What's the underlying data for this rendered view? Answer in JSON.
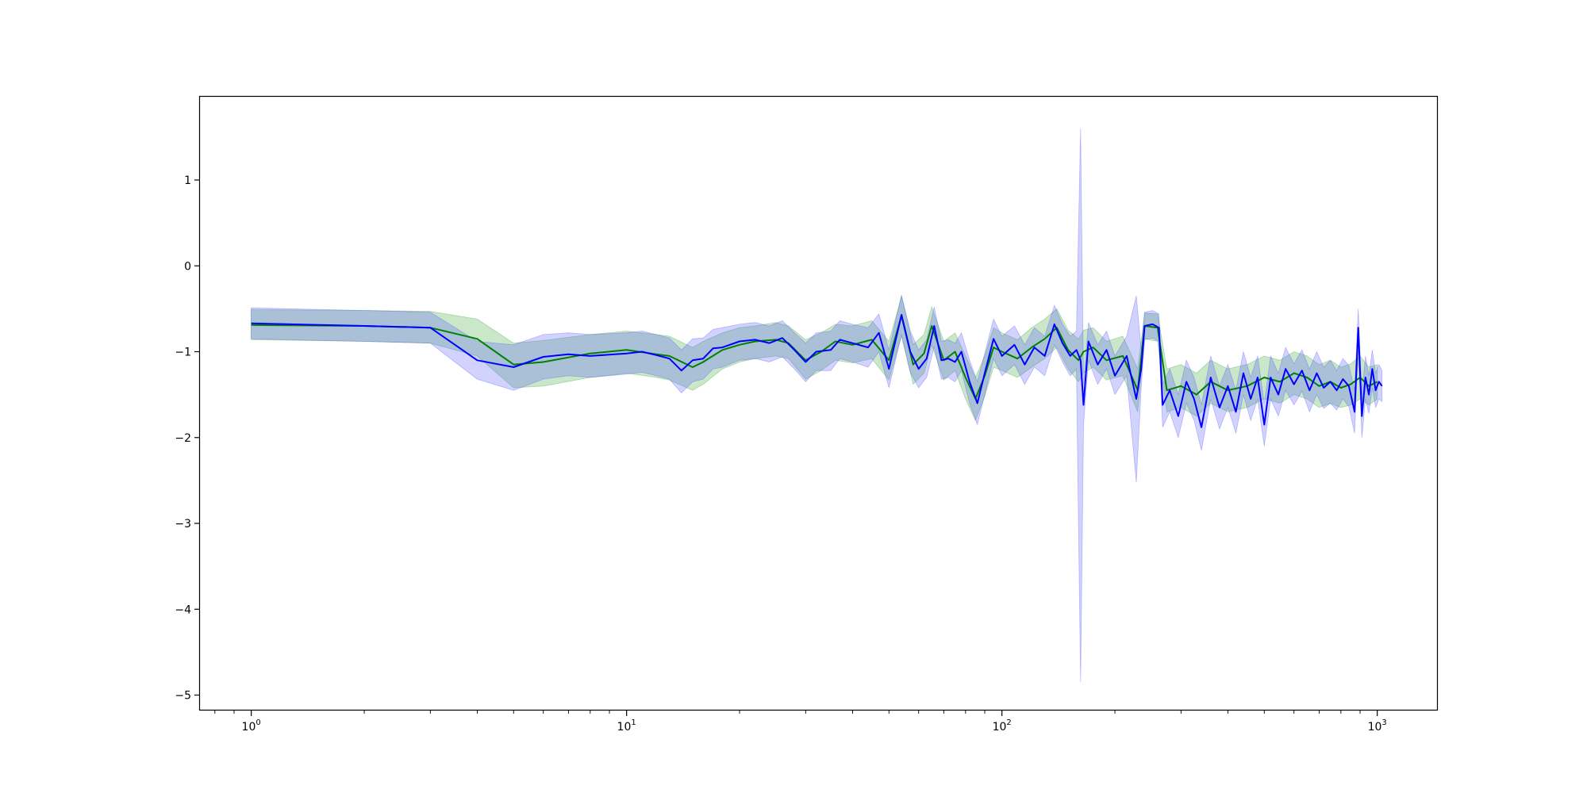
{
  "chart_data": {
    "type": "line",
    "title": "",
    "xlabel": "",
    "ylabel": "",
    "x_scale": "log",
    "xlim": [
      0.73,
      1450
    ],
    "ylim": [
      -5.18,
      1.97
    ],
    "grid": false,
    "legend": "none",
    "x_ticks": [
      {
        "value": 1,
        "base": "10",
        "exp": "0"
      },
      {
        "value": 10,
        "base": "10",
        "exp": "1"
      },
      {
        "value": 100,
        "base": "10",
        "exp": "2"
      },
      {
        "value": 1000,
        "base": "10",
        "exp": "3"
      }
    ],
    "y_ticks": [
      {
        "value": 1,
        "label": "1"
      },
      {
        "value": 0,
        "label": "0"
      },
      {
        "value": -1,
        "label": "−1"
      },
      {
        "value": -2,
        "label": "−2"
      },
      {
        "value": -3,
        "label": "−3"
      },
      {
        "value": -4,
        "label": "−4"
      },
      {
        "value": -5,
        "label": "−5"
      }
    ],
    "series": [
      {
        "color": "#008000",
        "band_color": "#2ca02c",
        "band_opacity": 0.25,
        "points": [
          [
            1,
            -0.69,
            -0.86,
            -0.51
          ],
          [
            2,
            -0.7,
            -0.88,
            -0.52
          ],
          [
            3,
            -0.72,
            -0.9,
            -0.53
          ],
          [
            4,
            -0.85,
            -1.05,
            -0.62
          ],
          [
            5,
            -1.15,
            -1.42,
            -0.9
          ],
          [
            6,
            -1.12,
            -1.4,
            -0.87
          ],
          [
            8,
            -1.02,
            -1.3,
            -0.8
          ],
          [
            10,
            -0.98,
            -1.25,
            -0.76
          ],
          [
            12,
            -1.03,
            -1.3,
            -0.8
          ],
          [
            13,
            -1.05,
            -1.33,
            -0.82
          ],
          [
            15,
            -1.18,
            -1.45,
            -0.95
          ],
          [
            16,
            -1.12,
            -1.38,
            -0.88
          ],
          [
            18,
            -0.98,
            -1.2,
            -0.78
          ],
          [
            20,
            -0.92,
            -1.12,
            -0.72
          ],
          [
            22,
            -0.88,
            -1.08,
            -0.7
          ],
          [
            25,
            -0.86,
            -1.05,
            -0.66
          ],
          [
            27,
            -0.9,
            -1.08,
            -0.7
          ],
          [
            30,
            -1.1,
            -1.32,
            -0.86
          ],
          [
            33,
            -1.0,
            -1.22,
            -0.78
          ],
          [
            36,
            -0.88,
            -1.1,
            -0.68
          ],
          [
            40,
            -0.92,
            -1.13,
            -0.7
          ],
          [
            45,
            -0.86,
            -1.08,
            -0.64
          ],
          [
            50,
            -1.1,
            -1.33,
            -0.88
          ],
          [
            54,
            -0.58,
            -0.82,
            -0.36
          ],
          [
            58,
            -1.15,
            -1.38,
            -0.92
          ],
          [
            62,
            -1.02,
            -1.25,
            -0.8
          ],
          [
            65,
            -0.7,
            -0.92,
            -0.48
          ],
          [
            70,
            -1.1,
            -1.33,
            -0.88
          ],
          [
            75,
            -1.0,
            -1.22,
            -0.78
          ],
          [
            80,
            -1.3,
            -1.55,
            -1.05
          ],
          [
            85,
            -1.55,
            -1.8,
            -1.3
          ],
          [
            90,
            -1.28,
            -1.52,
            -1.05
          ],
          [
            95,
            -0.95,
            -1.18,
            -0.72
          ],
          [
            100,
            -1.0,
            -1.22,
            -0.78
          ],
          [
            110,
            -1.08,
            -1.3,
            -0.86
          ],
          [
            120,
            -0.95,
            -1.18,
            -0.72
          ],
          [
            130,
            -0.85,
            -1.08,
            -0.62
          ],
          [
            140,
            -0.72,
            -0.95,
            -0.5
          ],
          [
            150,
            -0.98,
            -1.2,
            -0.75
          ],
          [
            160,
            -1.1,
            -1.35,
            -0.85
          ],
          [
            165,
            -1.0,
            -1.25,
            -0.75
          ],
          [
            175,
            -0.95,
            -1.18,
            -0.72
          ],
          [
            190,
            -1.1,
            -1.33,
            -0.88
          ],
          [
            210,
            -1.05,
            -1.28,
            -0.82
          ],
          [
            230,
            -1.45,
            -1.7,
            -1.2
          ],
          [
            240,
            -0.7,
            -0.85,
            -0.55
          ],
          [
            260,
            -0.72,
            -0.88,
            -0.56
          ],
          [
            275,
            -1.45,
            -1.7,
            -1.2
          ],
          [
            300,
            -1.4,
            -1.65,
            -1.15
          ],
          [
            330,
            -1.5,
            -1.75,
            -1.25
          ],
          [
            360,
            -1.35,
            -1.6,
            -1.1
          ],
          [
            400,
            -1.45,
            -1.7,
            -1.2
          ],
          [
            450,
            -1.4,
            -1.65,
            -1.15
          ],
          [
            500,
            -1.3,
            -1.55,
            -1.05
          ],
          [
            550,
            -1.35,
            -1.6,
            -1.1
          ],
          [
            600,
            -1.25,
            -1.5,
            -1.0
          ],
          [
            650,
            -1.3,
            -1.55,
            -1.05
          ],
          [
            700,
            -1.4,
            -1.65,
            -1.15
          ],
          [
            750,
            -1.35,
            -1.6,
            -1.1
          ],
          [
            800,
            -1.42,
            -1.65,
            -1.18
          ],
          [
            850,
            -1.38,
            -1.62,
            -1.14
          ],
          [
            900,
            -1.3,
            -1.55,
            -1.05
          ],
          [
            950,
            -1.4,
            -1.62,
            -1.18
          ],
          [
            1000,
            -1.35,
            -1.55,
            -1.15
          ]
        ]
      },
      {
        "color": "#0000ff",
        "band_color": "#4c4cff",
        "band_opacity": 0.25,
        "points": [
          [
            1,
            -0.67,
            -0.85,
            -0.49
          ],
          [
            2,
            -0.7,
            -0.88,
            -0.52
          ],
          [
            3,
            -0.72,
            -0.9,
            -0.54
          ],
          [
            4,
            -1.1,
            -1.32,
            -0.88
          ],
          [
            5,
            -1.18,
            -1.45,
            -0.92
          ],
          [
            6,
            -1.06,
            -1.32,
            -0.8
          ],
          [
            7,
            -1.03,
            -1.28,
            -0.78
          ],
          [
            8,
            -1.05,
            -1.3,
            -0.8
          ],
          [
            10,
            -1.02,
            -1.26,
            -0.78
          ],
          [
            11,
            -1.0,
            -1.24,
            -0.76
          ],
          [
            12,
            -1.04,
            -1.28,
            -0.8
          ],
          [
            13,
            -1.08,
            -1.32,
            -0.84
          ],
          [
            14,
            -1.22,
            -1.48,
            -0.98
          ],
          [
            15,
            -1.1,
            -1.35,
            -0.85
          ],
          [
            16,
            -1.08,
            -1.32,
            -0.84
          ],
          [
            17,
            -0.96,
            -1.2,
            -0.74
          ],
          [
            18,
            -0.95,
            -1.18,
            -0.72
          ],
          [
            20,
            -0.88,
            -1.1,
            -0.68
          ],
          [
            22,
            -0.86,
            -1.08,
            -0.66
          ],
          [
            24,
            -0.9,
            -1.12,
            -0.7
          ],
          [
            26,
            -0.84,
            -1.06,
            -0.64
          ],
          [
            28,
            -0.98,
            -1.2,
            -0.78
          ],
          [
            30,
            -1.12,
            -1.35,
            -0.9
          ],
          [
            32,
            -1.0,
            -1.22,
            -0.78
          ],
          [
            35,
            -0.98,
            -1.22,
            -0.76
          ],
          [
            37,
            -0.86,
            -1.08,
            -0.64
          ],
          [
            40,
            -0.9,
            -1.12,
            -0.68
          ],
          [
            44,
            -0.95,
            -1.18,
            -0.72
          ],
          [
            47,
            -0.78,
            -1.0,
            -0.56
          ],
          [
            50,
            -1.2,
            -1.42,
            -0.98
          ],
          [
            54,
            -0.57,
            -0.8,
            -0.34
          ],
          [
            57,
            -1.0,
            -1.24,
            -0.76
          ],
          [
            60,
            -1.2,
            -1.42,
            -0.98
          ],
          [
            63,
            -1.08,
            -1.3,
            -0.86
          ],
          [
            66,
            -0.7,
            -0.94,
            -0.48
          ],
          [
            69,
            -1.1,
            -1.32,
            -0.88
          ],
          [
            72,
            -1.08,
            -1.3,
            -0.86
          ],
          [
            75,
            -1.12,
            -1.35,
            -0.9
          ],
          [
            78,
            -1.0,
            -1.22,
            -0.78
          ],
          [
            82,
            -1.35,
            -1.6,
            -1.1
          ],
          [
            86,
            -1.6,
            -1.85,
            -1.35
          ],
          [
            90,
            -1.25,
            -1.5,
            -1.02
          ],
          [
            95,
            -0.85,
            -1.08,
            -0.62
          ],
          [
            100,
            -1.05,
            -1.28,
            -0.82
          ],
          [
            108,
            -0.92,
            -1.15,
            -0.7
          ],
          [
            115,
            -1.15,
            -1.38,
            -0.92
          ],
          [
            122,
            -0.95,
            -1.18,
            -0.72
          ],
          [
            130,
            -1.05,
            -1.28,
            -0.82
          ],
          [
            138,
            -0.68,
            -0.92,
            -0.46
          ],
          [
            145,
            -0.9,
            -1.12,
            -0.68
          ],
          [
            152,
            -1.05,
            -1.28,
            -0.82
          ],
          [
            158,
            -0.98,
            -1.2,
            -0.76
          ],
          [
            162,
            -1.1,
            -4.85,
            1.6
          ],
          [
            165,
            -1.62,
            -1.85,
            -1.38
          ],
          [
            170,
            -0.88,
            -1.1,
            -0.66
          ],
          [
            180,
            -1.15,
            -1.38,
            -0.92
          ],
          [
            190,
            -0.98,
            -1.2,
            -0.76
          ],
          [
            200,
            -1.28,
            -1.5,
            -1.05
          ],
          [
            215,
            -1.05,
            -1.28,
            -0.82
          ],
          [
            228,
            -1.55,
            -2.52,
            -0.35
          ],
          [
            235,
            -1.2,
            -1.42,
            -0.98
          ],
          [
            240,
            -0.7,
            -0.86,
            -0.54
          ],
          [
            252,
            -0.68,
            -0.84,
            -0.52
          ],
          [
            262,
            -0.72,
            -0.88,
            -0.56
          ],
          [
            268,
            -1.62,
            -1.88,
            -1.38
          ],
          [
            280,
            -1.45,
            -1.7,
            -1.2
          ],
          [
            295,
            -1.75,
            -2.0,
            -1.5
          ],
          [
            310,
            -1.35,
            -1.6,
            -1.1
          ],
          [
            325,
            -1.55,
            -1.8,
            -1.3
          ],
          [
            340,
            -1.88,
            -2.15,
            -1.62
          ],
          [
            360,
            -1.3,
            -1.55,
            -1.05
          ],
          [
            380,
            -1.65,
            -1.9,
            -1.4
          ],
          [
            400,
            -1.4,
            -1.65,
            -1.15
          ],
          [
            420,
            -1.7,
            -1.95,
            -1.45
          ],
          [
            440,
            -1.25,
            -1.5,
            -1.0
          ],
          [
            460,
            -1.55,
            -1.8,
            -1.3
          ],
          [
            480,
            -1.3,
            -1.55,
            -1.05
          ],
          [
            500,
            -1.85,
            -2.1,
            -1.6
          ],
          [
            520,
            -1.3,
            -1.55,
            -1.05
          ],
          [
            545,
            -1.5,
            -1.75,
            -1.25
          ],
          [
            570,
            -1.2,
            -1.45,
            -0.95
          ],
          [
            600,
            -1.38,
            -1.62,
            -1.14
          ],
          [
            630,
            -1.22,
            -1.46,
            -0.98
          ],
          [
            660,
            -1.45,
            -1.7,
            -1.2
          ],
          [
            690,
            -1.25,
            -1.5,
            -1.0
          ],
          [
            720,
            -1.42,
            -1.66,
            -1.18
          ],
          [
            750,
            -1.35,
            -1.6,
            -1.1
          ],
          [
            780,
            -1.45,
            -1.68,
            -1.22
          ],
          [
            810,
            -1.32,
            -1.55,
            -1.08
          ],
          [
            840,
            -1.4,
            -1.64,
            -1.16
          ],
          [
            870,
            -1.7,
            -1.95,
            -1.45
          ],
          [
            890,
            -0.72,
            -0.95,
            -0.5
          ],
          [
            910,
            -1.75,
            -2.0,
            -1.5
          ],
          [
            930,
            -1.3,
            -1.55,
            -1.05
          ],
          [
            950,
            -1.5,
            -1.72,
            -1.28
          ],
          [
            970,
            -1.2,
            -1.42,
            -0.98
          ],
          [
            990,
            -1.45,
            -1.65,
            -1.25
          ],
          [
            1010,
            -1.35,
            -1.55,
            -1.15
          ],
          [
            1030,
            -1.4,
            -1.58,
            -1.22
          ]
        ]
      }
    ]
  }
}
